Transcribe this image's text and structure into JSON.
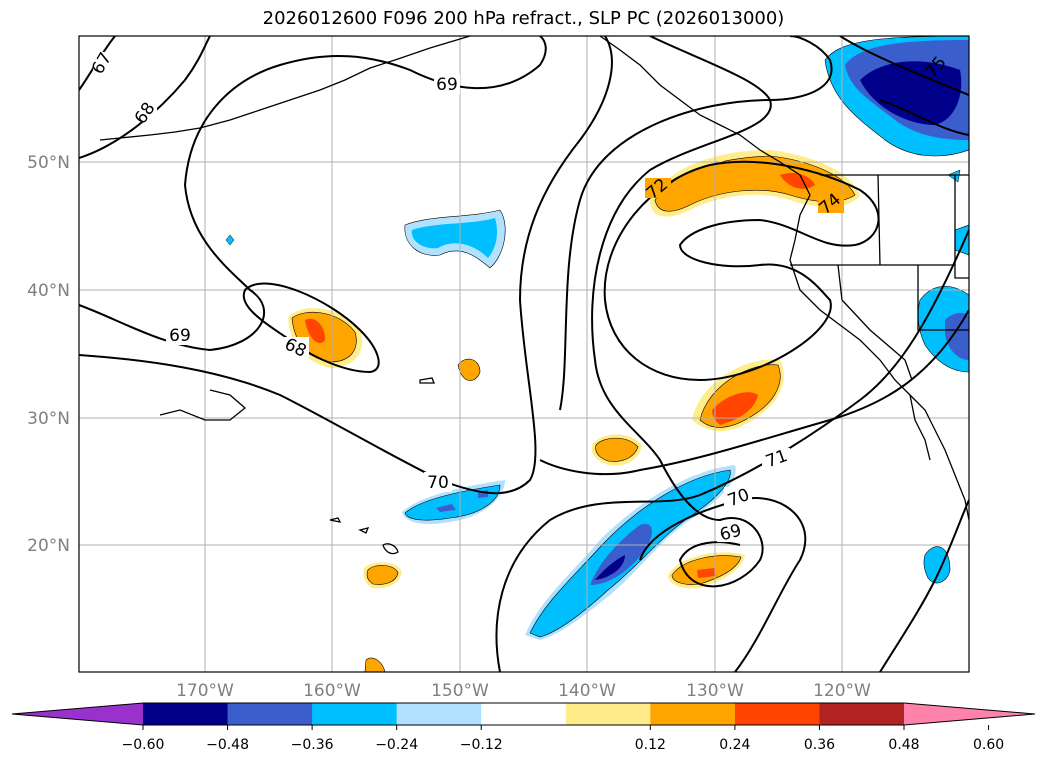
{
  "title": "2026012600 F096 200 hPa refract., SLP PC (2026013000)",
  "lat_labels": [
    "50°N",
    "40°N",
    "30°N",
    "20°N"
  ],
  "lon_labels": [
    "170°W",
    "160°W",
    "150°W",
    "140°W",
    "130°W",
    "120°W"
  ],
  "contour_labels": [
    "67",
    "68",
    "69",
    "68",
    "69",
    "70",
    "71",
    "70",
    "69",
    "72",
    "74",
    "75"
  ],
  "colorbar": {
    "ticks": [
      "−0.60",
      "−0.48",
      "−0.36",
      "−0.24",
      "−0.12",
      "0.12",
      "0.24",
      "0.36",
      "0.48",
      "0.60"
    ],
    "colors": [
      "#9932cc",
      "#00008b",
      "#3a5fcd",
      "#00bfff",
      "#b0e2ff",
      "#ffffff",
      "#ffec8b",
      "#ffa500",
      "#ff4500",
      "#b22222",
      "#ff82ab"
    ]
  }
}
